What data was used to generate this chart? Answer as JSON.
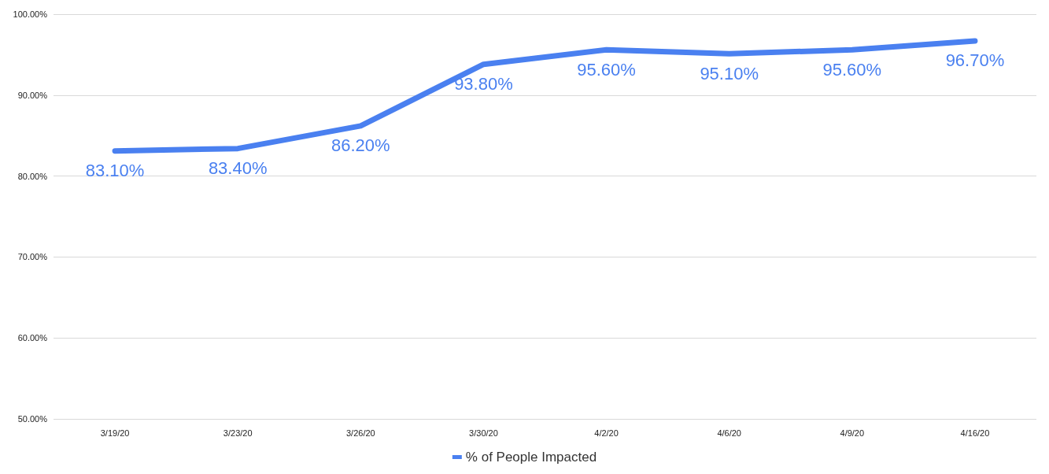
{
  "chart_data": {
    "type": "line",
    "categories": [
      "3/19/20",
      "3/23/20",
      "3/26/20",
      "3/30/20",
      "4/2/20",
      "4/6/20",
      "4/9/20",
      "4/16/20"
    ],
    "series": [
      {
        "name": "% of People Impacted",
        "color": "#4a80f0",
        "values": [
          83.1,
          83.4,
          86.2,
          93.8,
          95.6,
          95.1,
          95.6,
          96.7
        ],
        "value_labels": [
          "83.10%",
          "83.40%",
          "86.20%",
          "93.80%",
          "95.60%",
          "95.10%",
          "95.60%",
          "96.70%"
        ]
      }
    ],
    "ylim": [
      50,
      100
    ],
    "yticks": [
      {
        "value": 50,
        "label": "50.00%"
      },
      {
        "value": 60,
        "label": "60.00%"
      },
      {
        "value": 70,
        "label": "70.00%"
      },
      {
        "value": 80,
        "label": "80.00%"
      },
      {
        "value": 90,
        "label": "90.00%"
      },
      {
        "value": 100,
        "label": "100.00%"
      }
    ],
    "grid": "y",
    "legend": "bottom",
    "marker": "none",
    "line_style": "solid"
  }
}
